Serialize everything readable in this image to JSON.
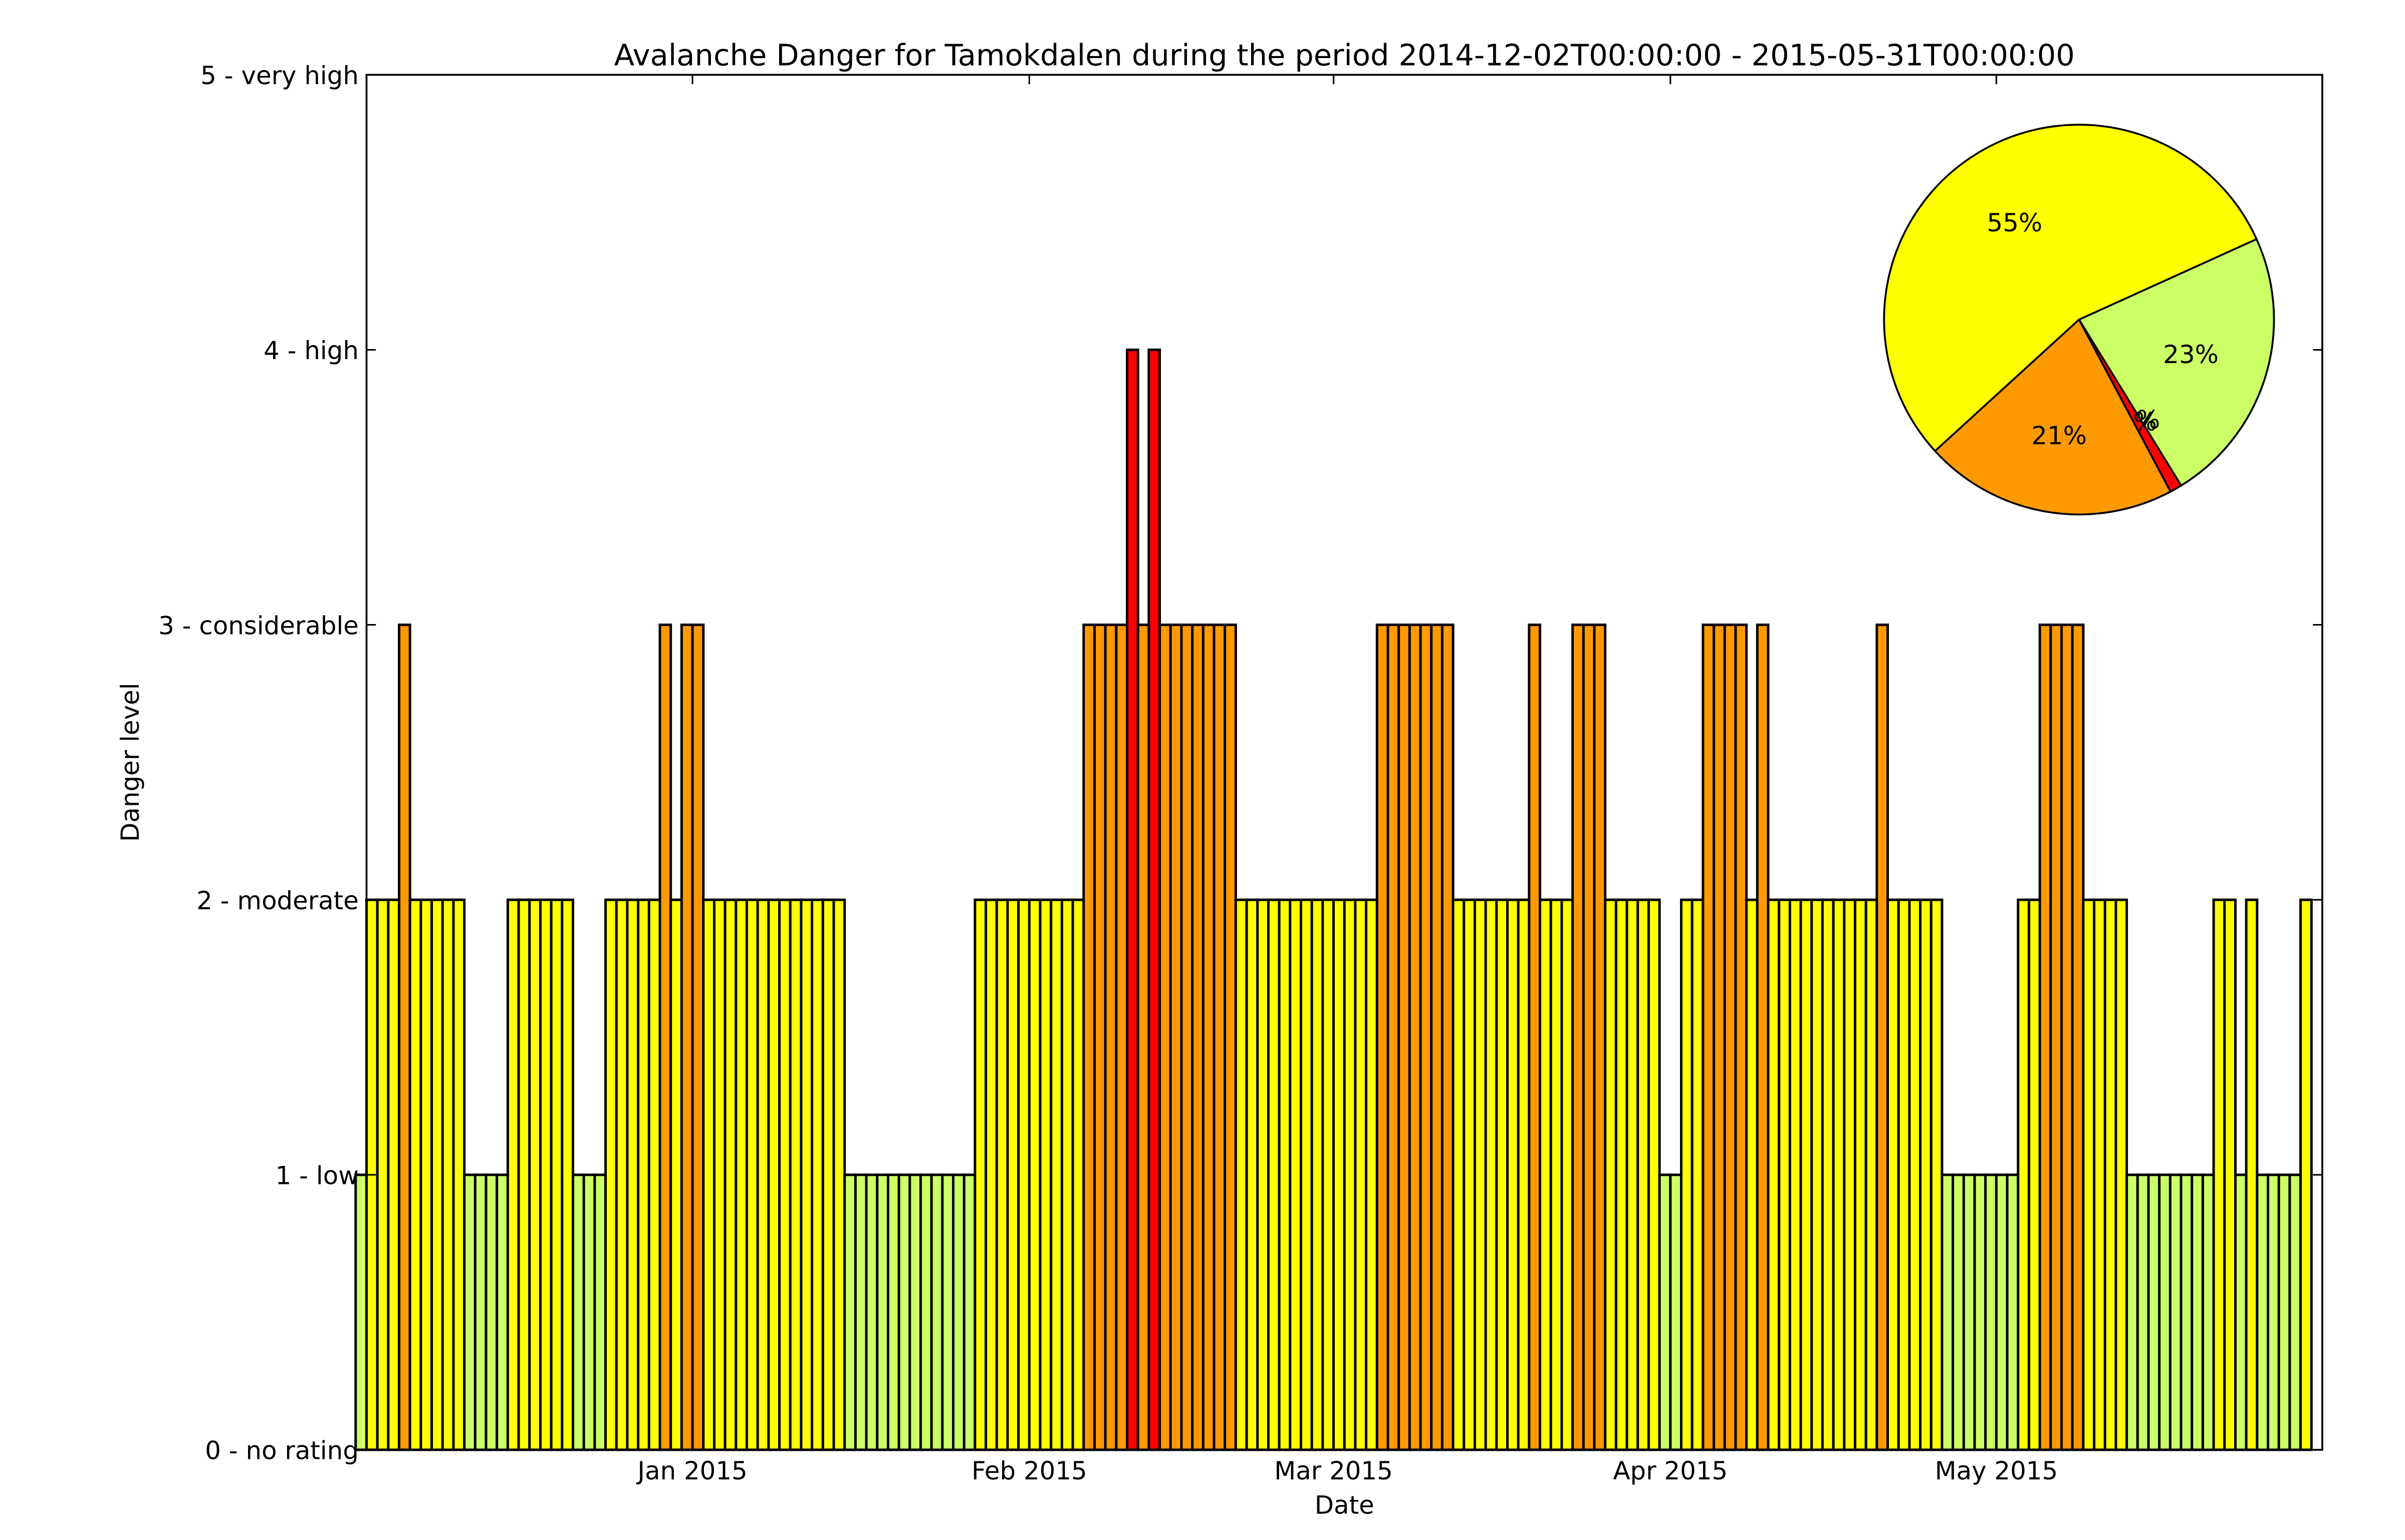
{
  "chart_data": [
    {
      "type": "bar",
      "title": "Avalanche Danger for Tamokdalen during the period 2014-12-02T00:00:00 - 2015-05-31T00:00:00",
      "xlabel": "Date",
      "ylabel": "Danger level",
      "ylim": [
        0,
        5
      ],
      "yticks": [
        "0 - no rating",
        "1 - low",
        "2 - moderate",
        "3 - considerable",
        "4 - high",
        "5 - very high"
      ],
      "xlim": [
        "2014-12-02",
        "2015-05-31"
      ],
      "xticks": [
        {
          "date": "2015-01-01",
          "label": "Jan 2015"
        },
        {
          "date": "2015-02-01",
          "label": "Feb 2015"
        },
        {
          "date": "2015-03-01",
          "label": "Mar 2015"
        },
        {
          "date": "2015-04-01",
          "label": "Apr 2015"
        },
        {
          "date": "2015-05-01",
          "label": "May 2015"
        }
      ],
      "start_date": "2014-12-02",
      "daily_levels": [
        1,
        2,
        2,
        2,
        3,
        2,
        2,
        2,
        2,
        2,
        1,
        1,
        1,
        1,
        2,
        2,
        2,
        2,
        2,
        2,
        1,
        1,
        1,
        2,
        2,
        2,
        2,
        2,
        3,
        2,
        3,
        3,
        2,
        2,
        2,
        2,
        2,
        2,
        2,
        2,
        2,
        2,
        2,
        2,
        2,
        1,
        1,
        1,
        1,
        1,
        1,
        1,
        1,
        1,
        1,
        1,
        1,
        2,
        2,
        2,
        2,
        2,
        2,
        2,
        2,
        2,
        2,
        3,
        3,
        3,
        3,
        4,
        3,
        4,
        3,
        3,
        3,
        3,
        3,
        3,
        3,
        2,
        2,
        2,
        2,
        2,
        2,
        2,
        2,
        2,
        2,
        2,
        2,
        2,
        3,
        3,
        3,
        3,
        3,
        3,
        3,
        2,
        2,
        2,
        2,
        2,
        2,
        2,
        3,
        2,
        2,
        2,
        3,
        3,
        3,
        2,
        2,
        2,
        2,
        2,
        1,
        1,
        2,
        2,
        3,
        3,
        3,
        3,
        2,
        3,
        2,
        2,
        2,
        2,
        2,
        2,
        2,
        2,
        2,
        2,
        3,
        2,
        2,
        2,
        2,
        2,
        1,
        1,
        1,
        1,
        1,
        1,
        1,
        2,
        2,
        3,
        3,
        3,
        3,
        2,
        2,
        2,
        2,
        1,
        1,
        1,
        1,
        1,
        1,
        1,
        1,
        2,
        2,
        1,
        2,
        1,
        1,
        1,
        1,
        2
      ],
      "level_colors": {
        "1": "#ccff66",
        "2": "#ffff00",
        "3": "#ff9900",
        "4": "#ff0000",
        "5": "#000000"
      },
      "grid": false
    },
    {
      "type": "pie",
      "slices": [
        {
          "value": 23,
          "label": "23%",
          "color": "#ccff66"
        },
        {
          "value": 0,
          "label": "0%",
          "color": "#d9d9d9"
        },
        {
          "value": 1,
          "label": "1%",
          "color": "#ff0000"
        },
        {
          "value": 21,
          "label": "21%",
          "color": "#ff9900"
        },
        {
          "value": 55,
          "label": "55%",
          "color": "#ffff00"
        }
      ]
    }
  ]
}
